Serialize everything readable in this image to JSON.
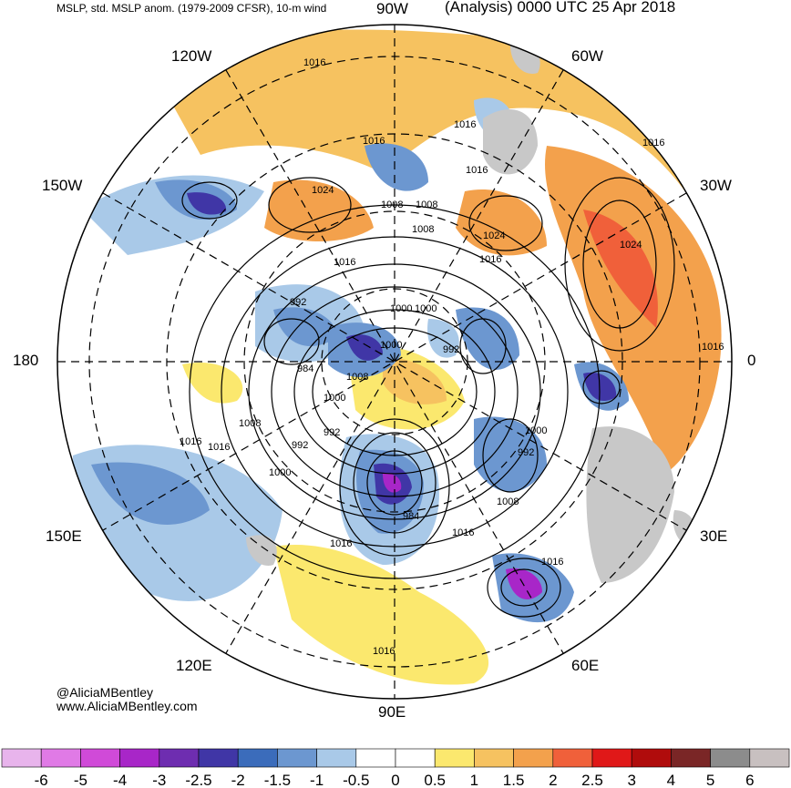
{
  "header": {
    "left_title": "MSLP, std. MSLP anom. (1979-2009 CFSR), 10-m wind",
    "right_title": "(Analysis) 0000 UTC 25 Apr 2018"
  },
  "longitude_labels": {
    "w90": "90W",
    "w60": "60W",
    "w30": "30W",
    "zero": "0",
    "e30": "30E",
    "e60": "60E",
    "e90": "90E",
    "e120": "120E",
    "e150": "150E",
    "d180": "180",
    "w150": "150W",
    "w120": "120W"
  },
  "credits": {
    "handle": "@AliciaMBentley",
    "website": "www.AliciaMBentley.com"
  },
  "isobar_labels": [
    "1016",
    "1016",
    "1016",
    "1016",
    "1016",
    "1016",
    "1016",
    "1024",
    "1024",
    "1024",
    "1008",
    "1008",
    "1008",
    "1000",
    "1000",
    "1000",
    "1000",
    "992",
    "992",
    "992",
    "992",
    "984",
    "984",
    "1008",
    "1016",
    "1016",
    "1016",
    "1016",
    "1016",
    "1008",
    "1000",
    "1016",
    "1016",
    "1008",
    "992",
    "1000"
  ],
  "colorbar": {
    "ticks": [
      "-6",
      "-5",
      "-4",
      "-3",
      "-2.5",
      "-2",
      "-1.5",
      "-1",
      "-0.5",
      "0",
      "0.5",
      "1",
      "1.5",
      "2",
      "2.5",
      "3",
      "4",
      "5",
      "6"
    ],
    "colors": [
      "#e8b4ec",
      "#e07ae6",
      "#d04ad8",
      "#a826c8",
      "#6e2db0",
      "#4036a6",
      "#3b6cbb",
      "#6c97d0",
      "#a9c9e8",
      "#ffffff",
      "#ffffff",
      "#fbe86e",
      "#f6c260",
      "#f3a14c",
      "#f0603a",
      "#e01818",
      "#b00c0c",
      "#7a2626",
      "#8c8c8c",
      "#c8c0c0"
    ]
  },
  "map_colors": {
    "land_grey": "#c8c8c8",
    "positive_light": "#fbe86e",
    "positive_mid": "#f6c260",
    "positive_high": "#f3a14c",
    "positive_max": "#f0603a",
    "negative_light": "#a9c9e8",
    "negative_mid": "#6c97d0",
    "negative_high": "#4036a6",
    "negative_max": "#a826c8",
    "contour": "#000000",
    "graticule": "#000000"
  }
}
